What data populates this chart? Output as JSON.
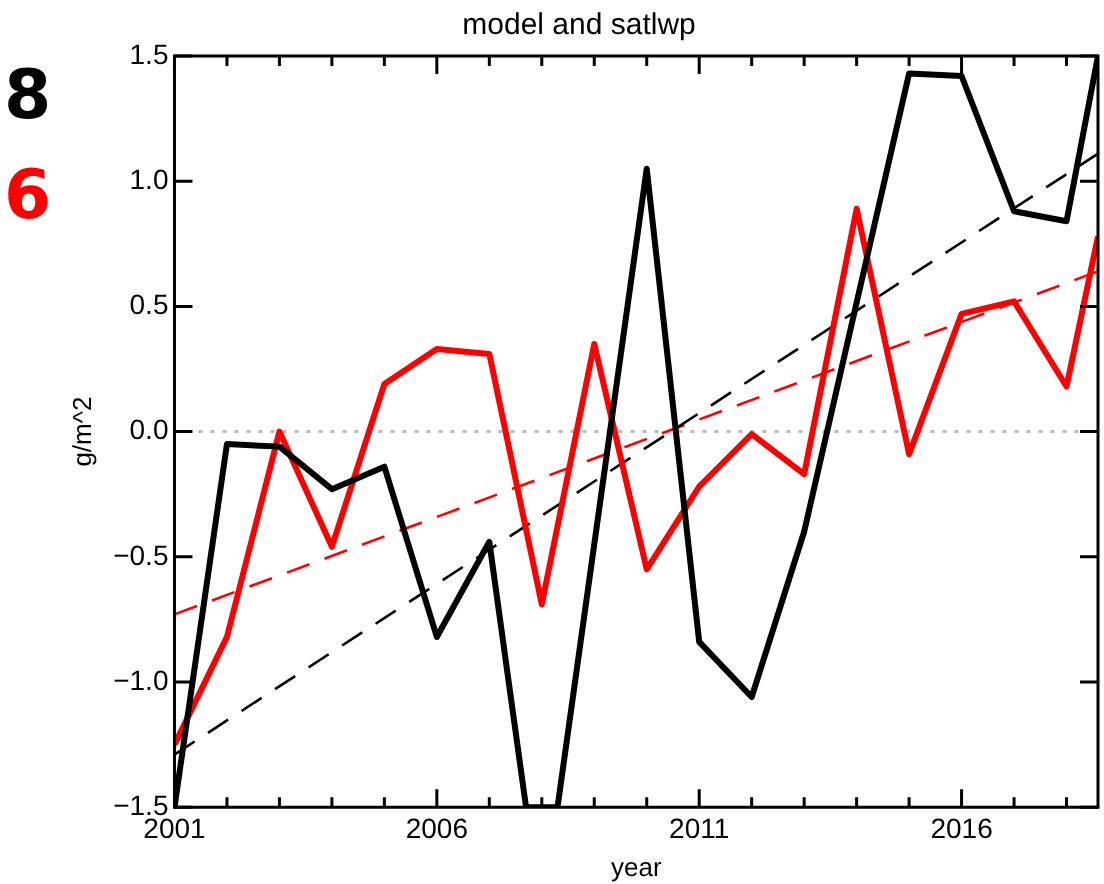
{
  "chart_data": {
    "type": "line",
    "title": "model and satlwp",
    "xlabel": "year",
    "ylabel": "g/m^2",
    "annotations": [
      "8",
      "6"
    ],
    "xlim": [
      2001,
      2018.6
    ],
    "ylim": [
      -1.5,
      1.5
    ],
    "xticks": [
      2001,
      {
        "value": 2002,
        "label": null
      },
      {
        "value": 2003,
        "label": null
      },
      {
        "value": 2004,
        "label": null
      },
      {
        "value": 2005,
        "label": null
      },
      2006,
      {
        "value": 2007,
        "label": null
      },
      {
        "value": 2008,
        "label": null
      },
      {
        "value": 2009,
        "label": null
      },
      {
        "value": 2010,
        "label": null
      },
      2011,
      {
        "value": 2012,
        "label": null
      },
      {
        "value": 2013,
        "label": null
      },
      {
        "value": 2014,
        "label": null
      },
      {
        "value": 2015,
        "label": null
      },
      2016,
      {
        "value": 2017,
        "label": null
      },
      {
        "value": 2018,
        "label": null
      }
    ],
    "yticks": [
      {
        "value": -1.5,
        "label": "−1.5"
      },
      {
        "value": -1,
        "label": "−1.0"
      },
      {
        "value": -0.5,
        "label": "−0.5"
      },
      {
        "value": 0,
        "label": "0.0"
      },
      {
        "value": 0.5,
        "label": "0.5"
      },
      {
        "value": 1,
        "label": "1.0"
      },
      {
        "value": 1.5,
        "label": "1.5"
      }
    ],
    "grid": false,
    "legend": false,
    "marker": "none",
    "ref_lines": [
      {
        "axis": "y",
        "value": 0,
        "color": "#bbbbbb",
        "line_style": "dotted"
      }
    ],
    "series": [
      {
        "color": "#000000",
        "line_style": "solid",
        "x": [
          2001,
          2002,
          2003,
          2004,
          2005,
          2006,
          2007,
          2007.7,
          2008.3,
          2010,
          2011,
          2012,
          2013,
          2015,
          2016,
          2017,
          2018,
          2018.6
        ],
        "values": [
          -1.5,
          -0.05,
          -0.06,
          -0.23,
          -0.14,
          -0.82,
          -0.44,
          -1.5,
          -1.5,
          1.05,
          -0.84,
          -1.06,
          -0.4,
          1.43,
          1.42,
          0.88,
          0.84,
          1.5
        ]
      },
      {
        "color": "#ff0000",
        "line_style": "solid",
        "x": [
          2001,
          2002,
          2003,
          2004,
          2005,
          2006,
          2007,
          2008,
          2009,
          2010,
          2011,
          2012,
          2013,
          2014,
          2015,
          2016,
          2017,
          2018,
          2018.6
        ],
        "values": [
          -1.25,
          -0.82,
          0,
          -0.46,
          0.19,
          0.33,
          0.31,
          -0.69,
          0.35,
          -0.55,
          -0.22,
          -0.01,
          -0.17,
          0.89,
          -0.09,
          0.47,
          0.52,
          0.18,
          0.78
        ]
      },
      {
        "color": "#000000",
        "line_style": "dashed",
        "x": [
          2001,
          2018.6
        ],
        "values": [
          -1.29,
          1.11
        ]
      },
      {
        "color": "#ff0000",
        "line_style": "dashed",
        "x": [
          2001,
          2018.6
        ],
        "values": [
          -0.73,
          0.64
        ]
      }
    ]
  }
}
